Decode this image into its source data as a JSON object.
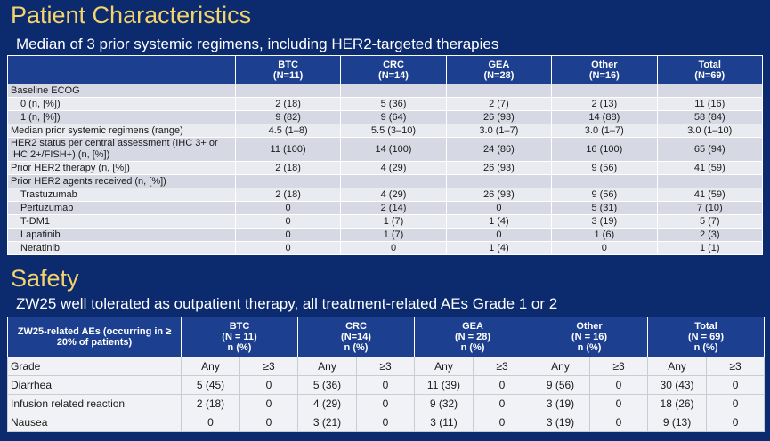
{
  "sections": [
    {
      "title": "Patient Characteristics",
      "subtitle": "Median of 3 prior systemic regimens, including HER2-targeted therapies",
      "table": {
        "columns": [
          {
            "name": "BTC",
            "n": "(N=11)"
          },
          {
            "name": "CRC",
            "n": "(N=14)"
          },
          {
            "name": "GEA",
            "n": "(N=28)"
          },
          {
            "name": "Other",
            "n": "(N=16)"
          },
          {
            "name": "Total",
            "n": "(N=69)"
          }
        ],
        "rows": [
          [
            "Baseline ECOG"
          ],
          [
            "0 (n, [%])",
            "2 (18)",
            "5 (36)",
            "2 (7)",
            "2 (13)",
            "11 (16)"
          ],
          [
            "1 (n, [%])",
            "9 (82)",
            "9 (64)",
            "26 (93)",
            "14 (88)",
            "58 (84)"
          ],
          [
            "Median prior systemic regimens (range)",
            "4.5 (1–8)",
            "5.5 (3–10)",
            "3.0 (1–7)",
            "3.0 (1–7)",
            "3.0 (1–10)"
          ],
          [
            "HER2 status per central assessment (IHC 3+ or IHC 2+/FISH+) (n, [%])",
            "11 (100)",
            "14 (100)",
            "24 (86)",
            "16 (100)",
            "65 (94)"
          ],
          [
            "Prior HER2 therapy (n, [%])",
            "2 (18)",
            "4 (29)",
            "26 (93)",
            "9 (56)",
            "41 (59)"
          ],
          [
            "Prior HER2 agents received (n, [%])"
          ],
          [
            "Trastuzumab",
            "2 (18)",
            "4 (29)",
            "26 (93)",
            "9 (56)",
            "41 (59)"
          ],
          [
            "Pertuzumab",
            "0",
            "2 (14)",
            "0",
            "5 (31)",
            "7 (10)"
          ],
          [
            "T-DM1",
            "0",
            "1 (7)",
            "1 (4)",
            "3 (19)",
            "5 (7)"
          ],
          [
            "Lapatinib",
            "0",
            "1 (7)",
            "0",
            "1 (6)",
            "2 (3)"
          ],
          [
            "Neratinib",
            "0",
            "0",
            "1 (4)",
            "0",
            "1 (1)"
          ]
        ]
      }
    },
    {
      "title": "Safety",
      "subtitle": "ZW25 well tolerated as outpatient therapy, all treatment-related AEs Grade 1 or 2",
      "table": {
        "corner": "ZW25-related AEs (occurring in ≥ 20% of patients)",
        "columns": [
          {
            "name": "BTC",
            "n": "(N = 11)",
            "unit": "n (%)"
          },
          {
            "name": "CRC",
            "n": "(N=14)",
            "unit": "n (%)"
          },
          {
            "name": "GEA",
            "n": "(N = 28)",
            "unit": "n (%)"
          },
          {
            "name": "Other",
            "n": "(N = 16)",
            "unit": "n (%)"
          },
          {
            "name": "Total",
            "n": "(N = 69)",
            "unit": "n (%)"
          }
        ],
        "grade_row": [
          "Grade",
          "Any",
          "≥3"
        ],
        "rows": [
          [
            "Diarrhea",
            "5 (45)",
            "0",
            "5 (36)",
            "0",
            "11 (39)",
            "0",
            "9 (56)",
            "0",
            "30 (43)",
            "0"
          ],
          [
            "Infusion related reaction",
            "2 (18)",
            "0",
            "4 (29)",
            "0",
            "9 (32)",
            "0",
            "3 (19)",
            "0",
            "18 (26)",
            "0"
          ],
          [
            "Nausea",
            "0",
            "0",
            "3 (21)",
            "0",
            "3 (11)",
            "0",
            "3 (19)",
            "0",
            "9 (13)",
            "0"
          ]
        ]
      }
    }
  ]
}
